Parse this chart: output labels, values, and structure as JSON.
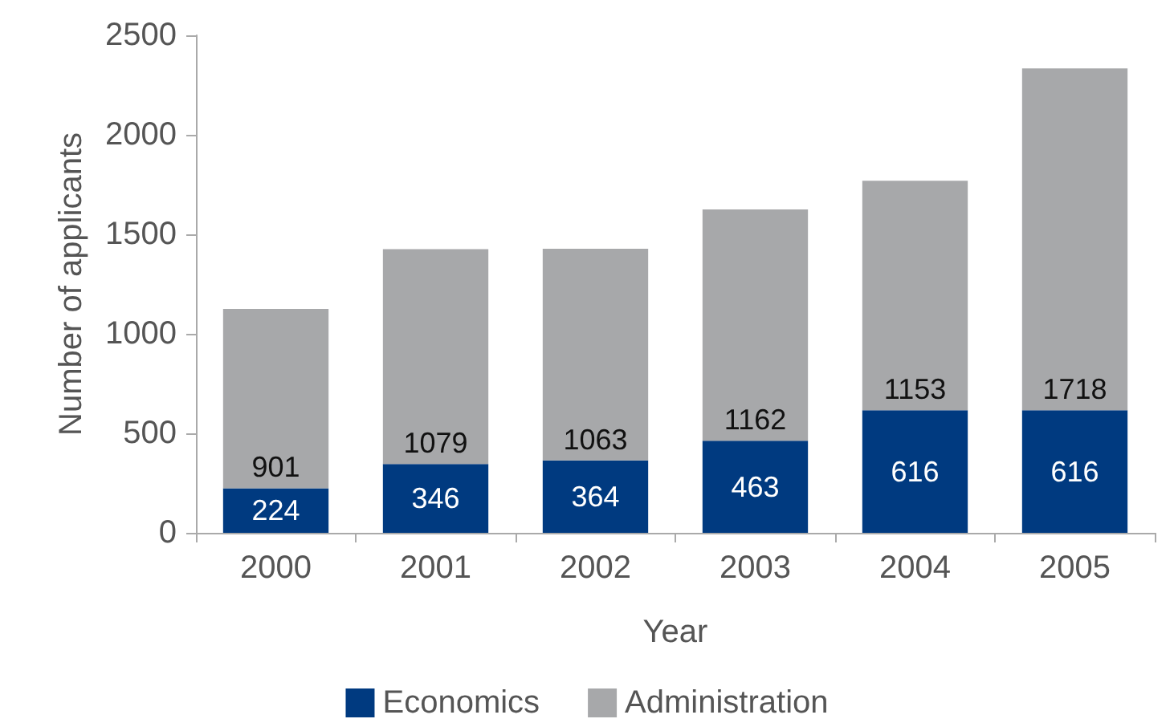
{
  "chart_data": {
    "type": "bar",
    "stacked": true,
    "xlabel": "Year",
    "ylabel": "Number of applicants",
    "categories": [
      "2000",
      "2001",
      "2002",
      "2003",
      "2004",
      "2005"
    ],
    "series": [
      {
        "name": "Economics",
        "color": "#003a80",
        "values": [
          224,
          346,
          364,
          463,
          616,
          616
        ]
      },
      {
        "name": "Administration",
        "color": "#a7a8aa",
        "values": [
          901,
          1079,
          1063,
          1162,
          1153,
          1718
        ]
      }
    ],
    "ylim": [
      0,
      2500
    ],
    "yticks": [
      0,
      500,
      1000,
      1500,
      2000,
      2500
    ],
    "grid": false,
    "legend": "bottom",
    "data_labels": true
  }
}
